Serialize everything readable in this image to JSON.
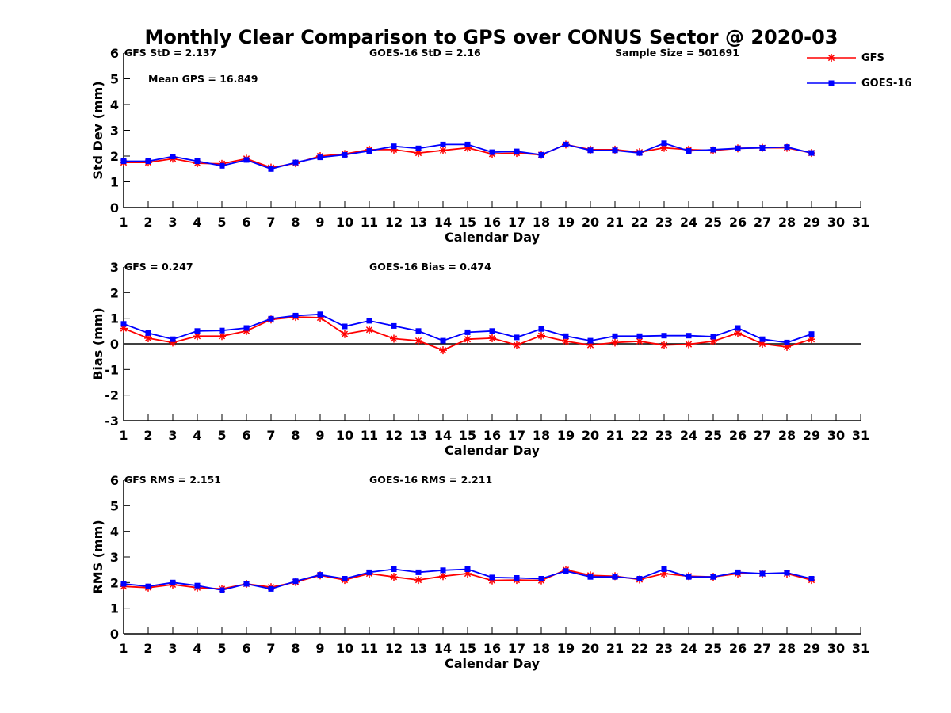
{
  "title": "Monthly Clear Comparison to GPS over CONUS Sector @ 2020-03",
  "legend": {
    "placement": "top-right",
    "entries": [
      {
        "name": "GFS",
        "color": "#ff0000",
        "marker": "asterisk"
      },
      {
        "name": "GOES-16",
        "color": "#0000ff",
        "marker": "square"
      }
    ]
  },
  "chart_data": [
    {
      "type": "line",
      "xlabel": "Calendar Day",
      "ylabel": "Std Dev (mm)",
      "xlim": [
        1,
        31
      ],
      "ylim": [
        0,
        6
      ],
      "xticks": [
        "1",
        "2",
        "3",
        "4",
        "5",
        "6",
        "7",
        "8",
        "9",
        "10",
        "11",
        "12",
        "13",
        "14",
        "15",
        "16",
        "17",
        "18",
        "19",
        "20",
        "21",
        "22",
        "23",
        "24",
        "25",
        "26",
        "27",
        "28",
        "29",
        "30",
        "31"
      ],
      "yticks": [
        "0",
        "1",
        "2",
        "3",
        "4",
        "5",
        "6"
      ],
      "zero_line": false,
      "annotations": [
        "GFS StD = 2.137",
        "GOES-16 StD = 2.16",
        "Sample Size = 501691",
        "Mean GPS = 16.849"
      ],
      "x": [
        1,
        2,
        3,
        4,
        5,
        6,
        7,
        8,
        9,
        10,
        11,
        12,
        13,
        14,
        15,
        16,
        17,
        18,
        19,
        20,
        21,
        22,
        23,
        24,
        25,
        26,
        27,
        28,
        29
      ],
      "series": [
        {
          "name": "GFS",
          "color": "#ff0000",
          "values": [
            1.75,
            1.75,
            1.9,
            1.72,
            1.7,
            1.9,
            1.55,
            1.72,
            2.0,
            2.08,
            2.25,
            2.25,
            2.12,
            2.22,
            2.32,
            2.08,
            2.12,
            2.05,
            2.45,
            2.25,
            2.25,
            2.15,
            2.32,
            2.25,
            2.22,
            2.3,
            2.32,
            2.32,
            2.12
          ]
        },
        {
          "name": "GOES-16",
          "color": "#0000ff",
          "values": [
            1.8,
            1.8,
            1.98,
            1.8,
            1.62,
            1.85,
            1.5,
            1.75,
            1.95,
            2.05,
            2.2,
            2.38,
            2.3,
            2.45,
            2.45,
            2.15,
            2.18,
            2.05,
            2.45,
            2.22,
            2.22,
            2.12,
            2.5,
            2.2,
            2.25,
            2.3,
            2.32,
            2.35,
            2.12
          ]
        }
      ]
    },
    {
      "type": "line",
      "xlabel": "Calendar Day",
      "ylabel": "Bias (mm)",
      "xlim": [
        1,
        31
      ],
      "ylim": [
        -3,
        3
      ],
      "xticks": [
        "1",
        "2",
        "3",
        "4",
        "5",
        "6",
        "7",
        "8",
        "9",
        "10",
        "11",
        "12",
        "13",
        "14",
        "15",
        "16",
        "17",
        "18",
        "19",
        "20",
        "21",
        "22",
        "23",
        "24",
        "25",
        "26",
        "27",
        "28",
        "29",
        "30",
        "31"
      ],
      "yticks": [
        "-3",
        "-2",
        "-1",
        "0",
        "1",
        "2",
        "3"
      ],
      "zero_line": true,
      "annotations": [
        "GFS = 0.247",
        "GOES-16 Bias = 0.474"
      ],
      "x": [
        1,
        2,
        3,
        4,
        5,
        6,
        7,
        8,
        9,
        10,
        11,
        12,
        13,
        14,
        15,
        16,
        17,
        18,
        19,
        20,
        21,
        22,
        23,
        24,
        25,
        26,
        27,
        28,
        29
      ],
      "series": [
        {
          "name": "GFS",
          "color": "#ff0000",
          "values": [
            0.6,
            0.22,
            0.05,
            0.3,
            0.3,
            0.5,
            0.95,
            1.05,
            1.02,
            0.38,
            0.55,
            0.2,
            0.12,
            -0.25,
            0.18,
            0.22,
            -0.05,
            0.32,
            0.1,
            -0.05,
            0.05,
            0.1,
            -0.05,
            -0.02,
            0.1,
            0.42,
            0.0,
            -0.12,
            0.18
          ]
        },
        {
          "name": "GOES-16",
          "color": "#0000ff",
          "values": [
            0.78,
            0.42,
            0.18,
            0.5,
            0.52,
            0.62,
            0.98,
            1.1,
            1.15,
            0.68,
            0.9,
            0.7,
            0.5,
            0.12,
            0.45,
            0.5,
            0.25,
            0.58,
            0.3,
            0.12,
            0.3,
            0.3,
            0.32,
            0.32,
            0.28,
            0.62,
            0.18,
            0.05,
            0.38
          ]
        }
      ]
    },
    {
      "type": "line",
      "xlabel": "Calendar Day",
      "ylabel": "RMS (mm)",
      "xlim": [
        1,
        31
      ],
      "ylim": [
        0,
        6
      ],
      "xticks": [
        "1",
        "2",
        "3",
        "4",
        "5",
        "6",
        "7",
        "8",
        "9",
        "10",
        "11",
        "12",
        "13",
        "14",
        "15",
        "16",
        "17",
        "18",
        "19",
        "20",
        "21",
        "22",
        "23",
        "24",
        "25",
        "26",
        "27",
        "28",
        "29",
        "30",
        "31"
      ],
      "yticks": [
        "0",
        "1",
        "2",
        "3",
        "4",
        "5",
        "6"
      ],
      "zero_line": false,
      "annotations": [
        "GFS RMS = 2.151",
        "GOES-16 RMS = 2.211"
      ],
      "x": [
        1,
        2,
        3,
        4,
        5,
        6,
        7,
        8,
        9,
        10,
        11,
        12,
        13,
        14,
        15,
        16,
        17,
        18,
        19,
        20,
        21,
        22,
        23,
        24,
        25,
        26,
        27,
        28,
        29
      ],
      "series": [
        {
          "name": "GFS",
          "color": "#ff0000",
          "values": [
            1.85,
            1.8,
            1.92,
            1.8,
            1.75,
            1.95,
            1.82,
            2.02,
            2.28,
            2.1,
            2.35,
            2.22,
            2.1,
            2.25,
            2.35,
            2.08,
            2.1,
            2.08,
            2.5,
            2.28,
            2.25,
            2.12,
            2.35,
            2.25,
            2.22,
            2.35,
            2.35,
            2.35,
            2.1
          ]
        },
        {
          "name": "GOES-16",
          "color": "#0000ff",
          "values": [
            1.95,
            1.85,
            2.0,
            1.88,
            1.7,
            1.95,
            1.75,
            2.05,
            2.3,
            2.15,
            2.4,
            2.52,
            2.4,
            2.48,
            2.52,
            2.2,
            2.18,
            2.15,
            2.45,
            2.22,
            2.22,
            2.15,
            2.52,
            2.22,
            2.22,
            2.4,
            2.35,
            2.38,
            2.15
          ]
        }
      ]
    }
  ]
}
